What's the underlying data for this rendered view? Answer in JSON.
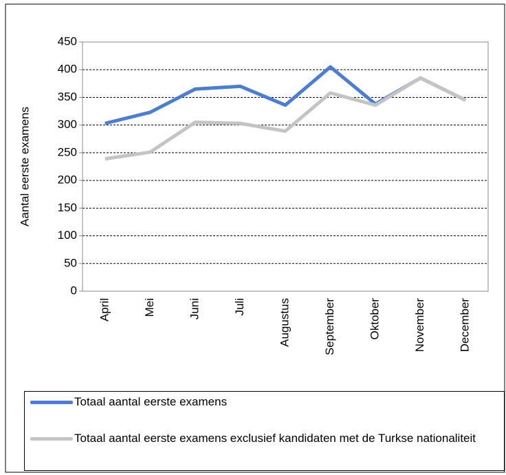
{
  "chart_data": {
    "type": "line",
    "y_label": "Aantal eerste examens",
    "categories": [
      "April",
      "Mei",
      "Juni",
      "Juli",
      "Augustus",
      "September",
      "Oktober",
      "November",
      "December"
    ],
    "series": [
      {
        "name": "Totaal aantal eerste examens",
        "color": "#4a7ed6",
        "values": [
          303,
          323,
          365,
          370,
          336,
          405,
          338,
          385,
          345
        ]
      },
      {
        "name": "Totaal aantal eerste examens exclusief kandidaten met de Turkse nationaliteit",
        "color": "#c4c4c4",
        "values": [
          239,
          251,
          305,
          303,
          289,
          358,
          336,
          385,
          345
        ]
      }
    ],
    "ylim": [
      0,
      450
    ],
    "yticks": [
      0,
      50,
      100,
      150,
      200,
      250,
      300,
      350,
      400,
      450
    ],
    "grid": true
  }
}
